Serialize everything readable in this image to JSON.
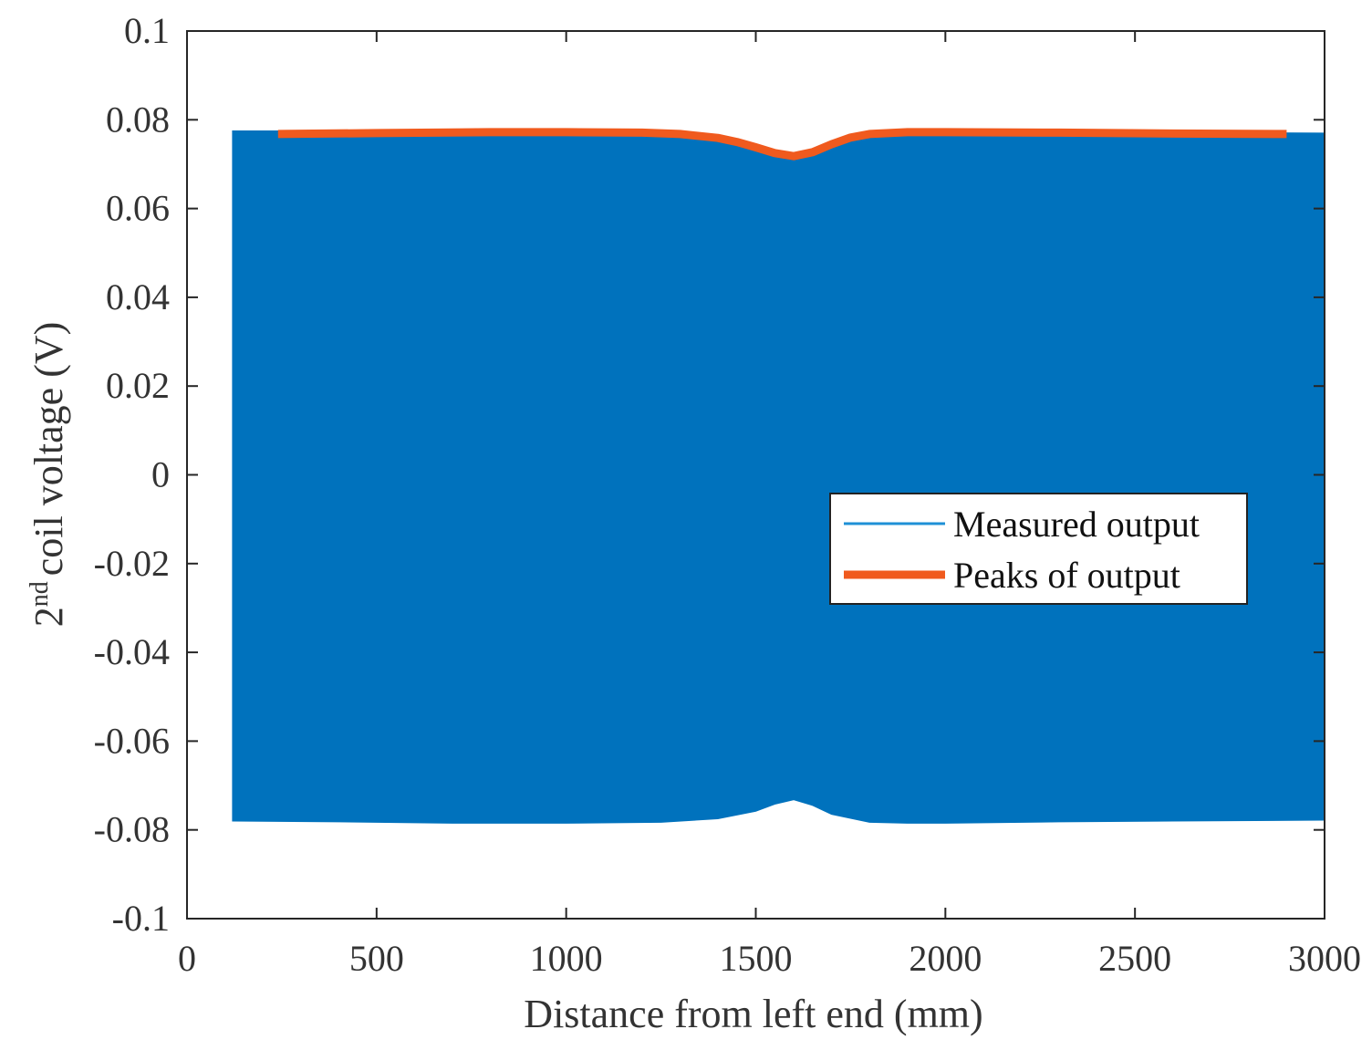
{
  "chart_data": {
    "type": "line",
    "xlabel": "Distance from left end (mm)",
    "ylabel": {
      "base": "2",
      "sup": "nd",
      "rest": "coil voltage (V)"
    },
    "xlim": [
      0,
      3000
    ],
    "ylim": [
      -0.1,
      0.1
    ],
    "x_ticks": [
      0,
      500,
      1000,
      1500,
      2000,
      2500,
      3000
    ],
    "x_tick_labels": [
      "0",
      "500",
      "1000",
      "1500",
      "2000",
      "2500",
      "3000"
    ],
    "y_ticks": [
      0.1,
      0.08,
      0.06,
      0.04,
      0.02,
      0,
      -0.02,
      -0.04,
      -0.06,
      -0.08,
      -0.1
    ],
    "y_tick_labels": [
      "0.1",
      "0.08",
      "0.06",
      "0.04",
      "0.02",
      "0",
      "-0.02",
      "-0.04",
      "-0.06",
      "-0.08",
      "-0.1"
    ],
    "grid": false,
    "legend_position": "center-right",
    "series": [
      {
        "name": "Measured output",
        "color": "#0072BD",
        "render": "envelope-fill",
        "x": [
          120,
          400,
          700,
          1000,
          1250,
          1400,
          1500,
          1550,
          1600,
          1650,
          1700,
          1800,
          1900,
          2000,
          2300,
          2600,
          3000
        ],
        "upper": [
          0.0775,
          0.0775,
          0.0777,
          0.0778,
          0.0775,
          0.0765,
          0.0745,
          0.0728,
          0.0718,
          0.0728,
          0.0748,
          0.077,
          0.0778,
          0.0777,
          0.0775,
          0.0772,
          0.077
        ],
        "lower": [
          -0.078,
          -0.0782,
          -0.0785,
          -0.0785,
          -0.0783,
          -0.0775,
          -0.0758,
          -0.0742,
          -0.0732,
          -0.0745,
          -0.0765,
          -0.0783,
          -0.0785,
          -0.0785,
          -0.0782,
          -0.078,
          -0.0778
        ]
      },
      {
        "name": "Peaks of output",
        "color": "#F05A1E",
        "render": "line",
        "x": [
          240,
          500,
          800,
          1000,
          1200,
          1300,
          1400,
          1450,
          1500,
          1550,
          1600,
          1650,
          1700,
          1750,
          1800,
          1900,
          2000,
          2300,
          2600,
          2900
        ],
        "values": [
          0.0768,
          0.077,
          0.0772,
          0.0772,
          0.0771,
          0.0768,
          0.0759,
          0.075,
          0.0738,
          0.0725,
          0.0718,
          0.0727,
          0.0745,
          0.076,
          0.0768,
          0.0772,
          0.0772,
          0.0771,
          0.0769,
          0.0768
        ]
      }
    ]
  }
}
